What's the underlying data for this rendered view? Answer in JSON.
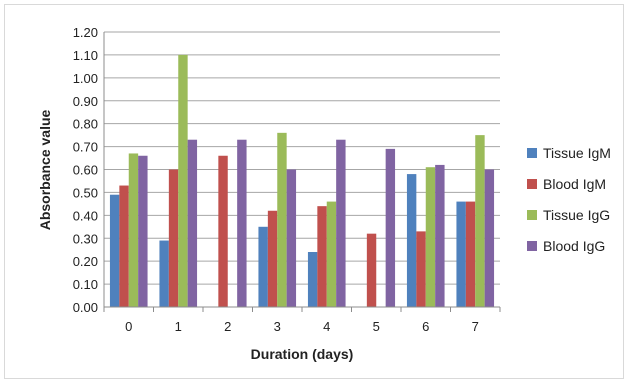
{
  "chart_data": {
    "type": "bar",
    "title": "",
    "xlabel": "Duration (days)",
    "ylabel": "Absorbance value",
    "ylim": [
      0,
      1.2
    ],
    "y_ticks": [
      "0.00",
      "0.10",
      "0.20",
      "0.30",
      "0.40",
      "0.50",
      "0.60",
      "0.70",
      "0.80",
      "0.90",
      "1.00",
      "1.10",
      "1.20"
    ],
    "categories": [
      "0",
      "1",
      "2",
      "3",
      "4",
      "5",
      "6",
      "7"
    ],
    "grid": "horizontal",
    "legend_position": "right",
    "series": [
      {
        "name": "Tissue IgM",
        "color": "#4f81bd",
        "values": [
          0.49,
          0.29,
          0,
          0.35,
          0.24,
          0,
          0.58,
          0.46
        ]
      },
      {
        "name": "Blood IgM",
        "color": "#c0504d",
        "values": [
          0.53,
          0.6,
          0.66,
          0.42,
          0.44,
          0.32,
          0.33,
          0.46
        ]
      },
      {
        "name": "Tissue IgG",
        "color": "#9bbb59",
        "values": [
          0.67,
          1.1,
          0,
          0.76,
          0.46,
          0,
          0.61,
          0.75
        ]
      },
      {
        "name": "Blood IgG",
        "color": "#8064a2",
        "values": [
          0.66,
          0.73,
          0.73,
          0.6,
          0.73,
          0.69,
          0.62,
          0.6
        ]
      }
    ]
  }
}
